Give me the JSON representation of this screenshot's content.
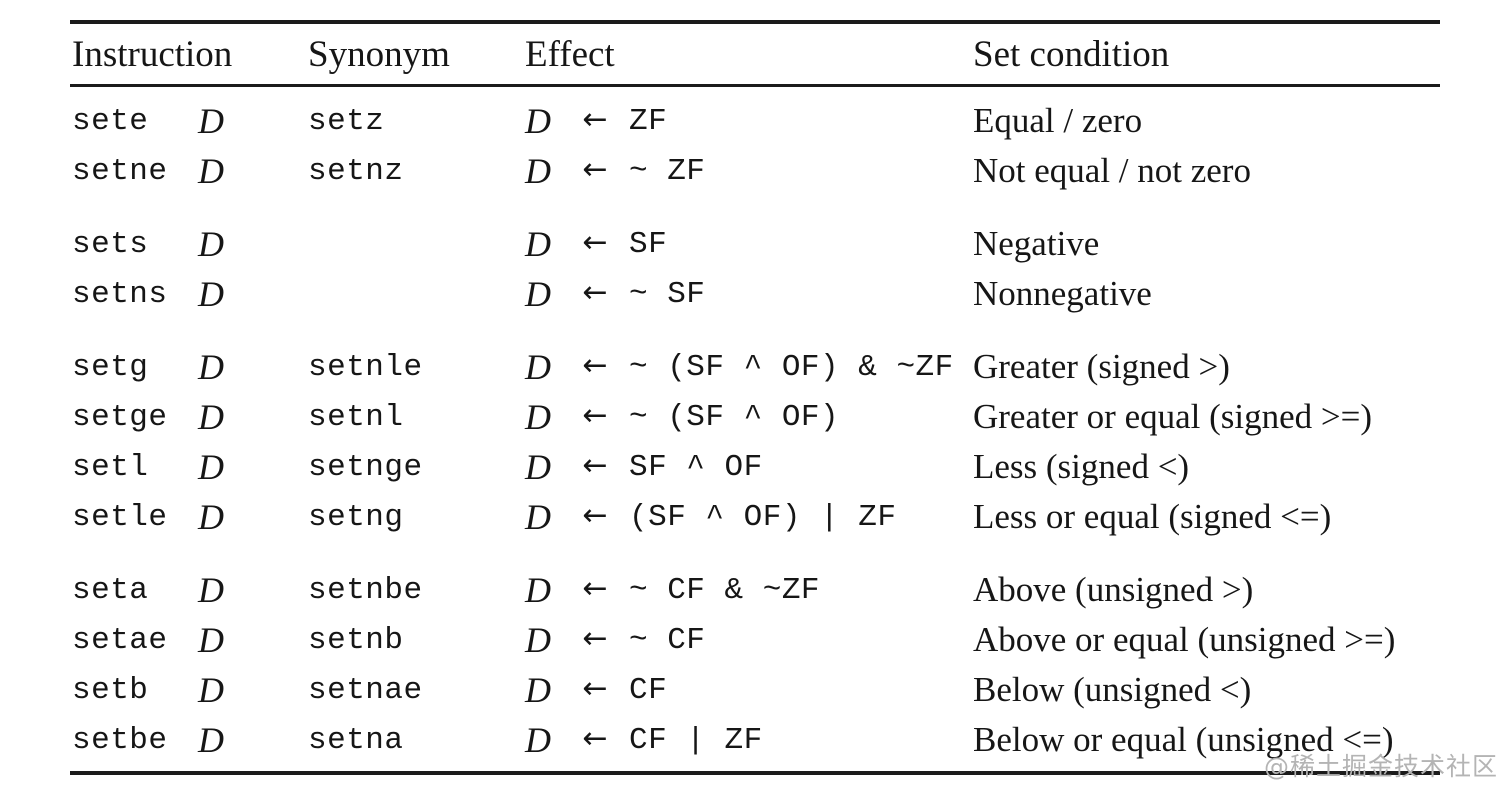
{
  "table": {
    "headers": {
      "instruction": "Instruction",
      "synonym": "Synonym",
      "effect": "Effect",
      "condition": "Set condition"
    },
    "operand": "D",
    "arrow": "←",
    "groups": [
      {
        "rows": [
          {
            "instruction": "sete",
            "synonym": "setz",
            "effect": "ZF",
            "condition": "Equal / zero"
          },
          {
            "instruction": "setne",
            "synonym": "setnz",
            "effect": "~ ZF",
            "condition": "Not equal / not zero"
          }
        ]
      },
      {
        "rows": [
          {
            "instruction": "sets",
            "synonym": "",
            "effect": "SF",
            "condition": "Negative"
          },
          {
            "instruction": "setns",
            "synonym": "",
            "effect": "~ SF",
            "condition": "Nonnegative"
          }
        ]
      },
      {
        "rows": [
          {
            "instruction": "setg",
            "synonym": "setnle",
            "effect": "~ (SF ^ OF) & ~ZF",
            "condition": "Greater (signed >)"
          },
          {
            "instruction": "setge",
            "synonym": "setnl",
            "effect": "~ (SF ^ OF)",
            "condition": "Greater or equal (signed >=)"
          },
          {
            "instruction": "setl",
            "synonym": "setnge",
            "effect": "SF ^ OF",
            "condition": "Less (signed <)"
          },
          {
            "instruction": "setle",
            "synonym": "setng",
            "effect": "(SF ^ OF) | ZF",
            "condition": "Less or equal (signed <=)"
          }
        ]
      },
      {
        "rows": [
          {
            "instruction": "seta",
            "synonym": "setnbe",
            "effect": "~ CF & ~ZF",
            "condition": "Above (unsigned >)"
          },
          {
            "instruction": "setae",
            "synonym": "setnb",
            "effect": "~ CF",
            "condition": "Above or equal (unsigned >=)"
          },
          {
            "instruction": "setb",
            "synonym": "setnae",
            "effect": "CF",
            "condition": "Below (unsigned <)"
          },
          {
            "instruction": "setbe",
            "synonym": "setna",
            "effect": "CF | ZF",
            "condition": "Below or equal (unsigned <=)"
          }
        ]
      }
    ]
  },
  "watermark": "@稀土掘金技术社区"
}
